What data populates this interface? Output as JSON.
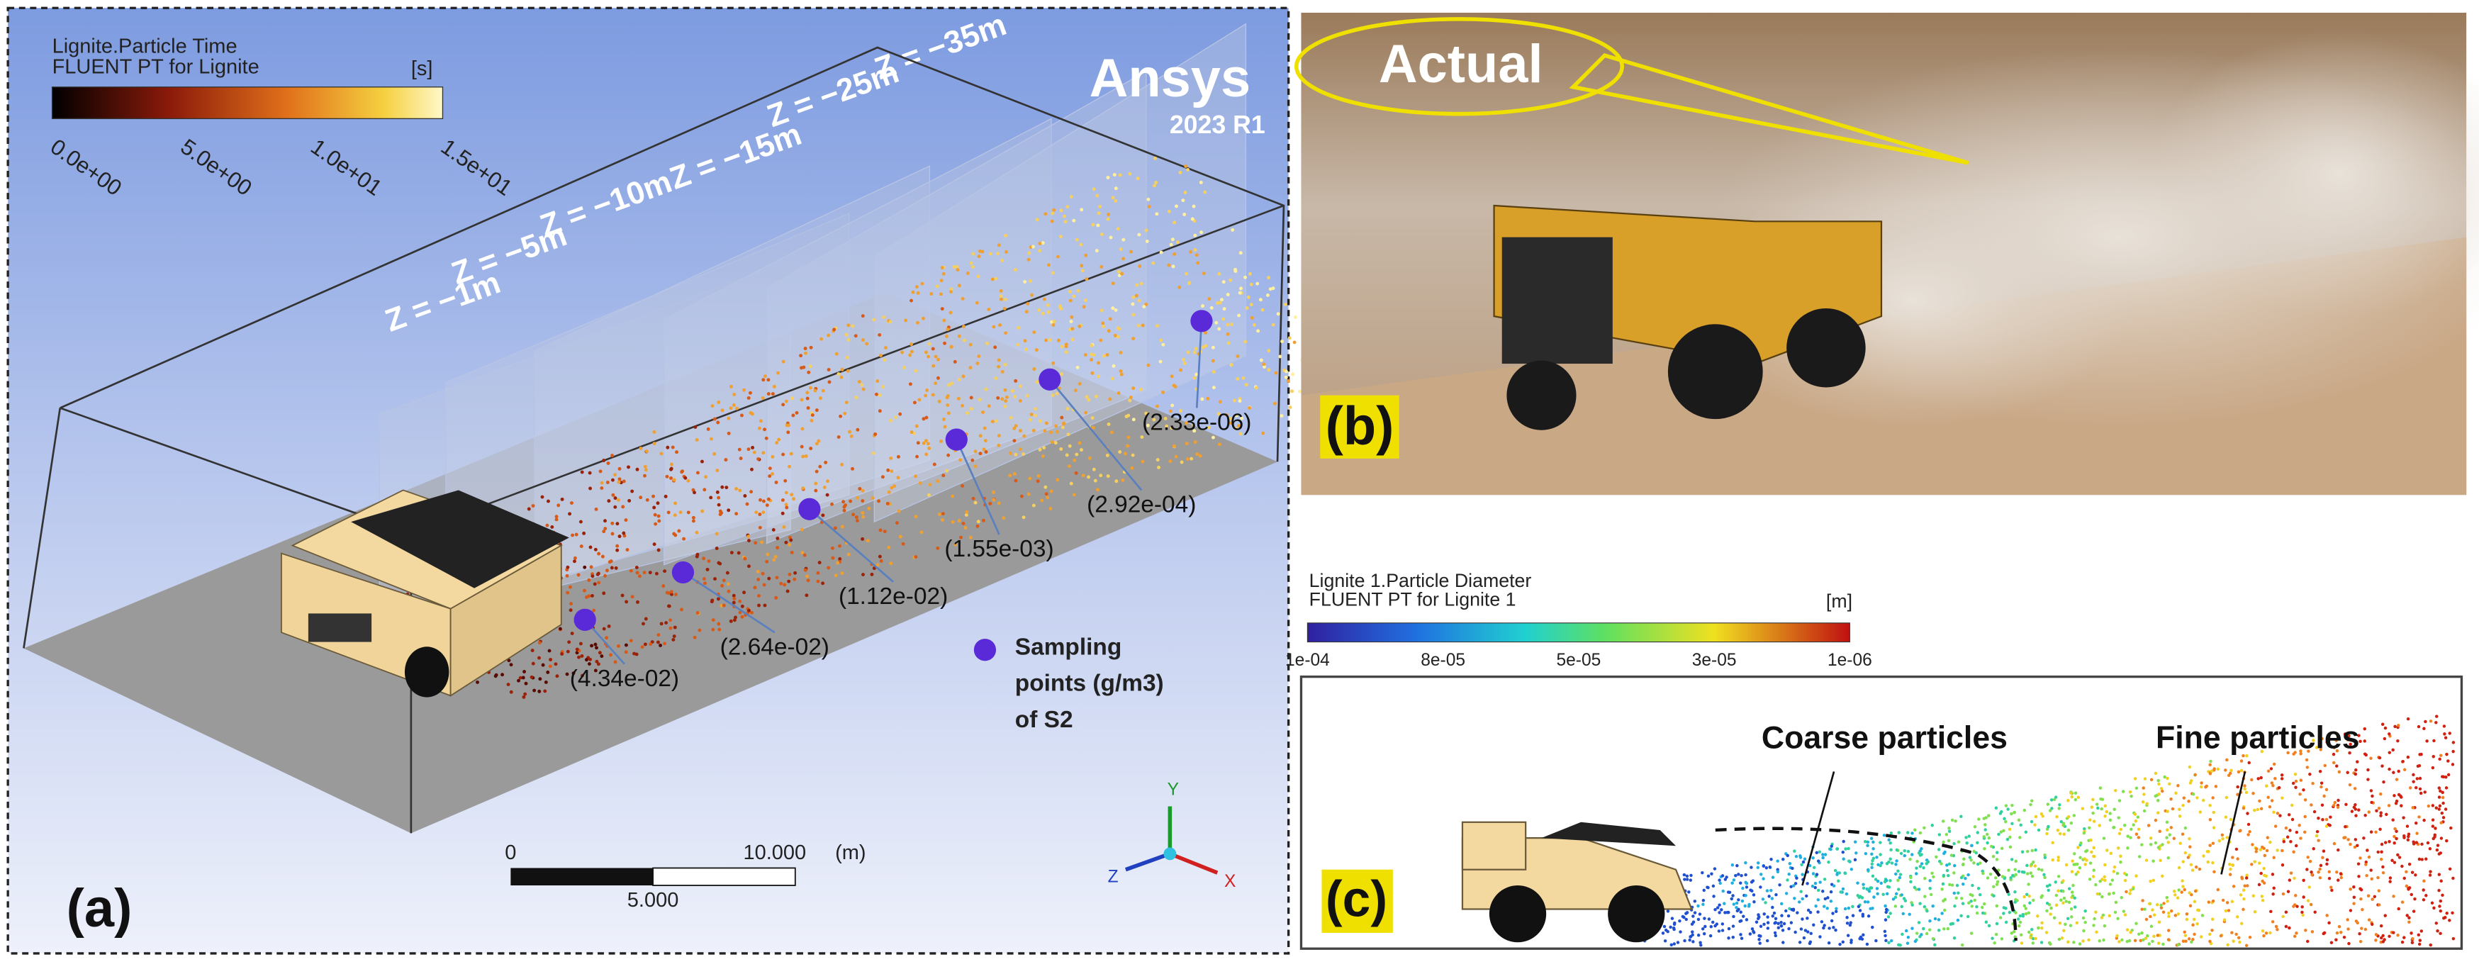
{
  "panel_a": {
    "colorbar": {
      "title": "Lignite.Particle Time",
      "subtitle": "FLUENT PT for Lignite",
      "unit": "[s]",
      "ticks": [
        "0.0e+00",
        "5.0e+00",
        "1.0e+01",
        "1.5e+01"
      ]
    },
    "logo": {
      "name": "Ansys",
      "version": "2023 R1"
    },
    "planes": [
      "Z = −1m",
      "Z = −5m",
      "Z = −10m",
      "Z = −15m",
      "Z = −25m",
      "Z = −35m"
    ],
    "sampling_values": [
      "(4.34e-02)",
      "(2.64e-02)",
      "(1.12e-02)",
      "(1.55e-03)",
      "(2.92e-04)",
      "(2.33e-06)"
    ],
    "sampling_legend": [
      "Sampling",
      "points (g/m3)",
      "of S2"
    ],
    "scale_bar": {
      "start": "0",
      "end": "10.000",
      "unit": "(m)",
      "mid": "5.000"
    },
    "axes": [
      "Y",
      "Z",
      "X"
    ],
    "label": "(a)"
  },
  "panel_b": {
    "callout": "Actual",
    "label": "(b)"
  },
  "panel_c": {
    "colorbar": {
      "title": "Lignite 1.Particle Diameter",
      "subtitle": "FLUENT PT for Lignite 1",
      "unit": "[m]",
      "ticks": [
        "1e-04",
        "8e-05",
        "5e-05",
        "3e-05",
        "1e-06"
      ]
    },
    "annotations": [
      "Coarse particles",
      "Fine particles"
    ],
    "label": "(c)"
  }
}
